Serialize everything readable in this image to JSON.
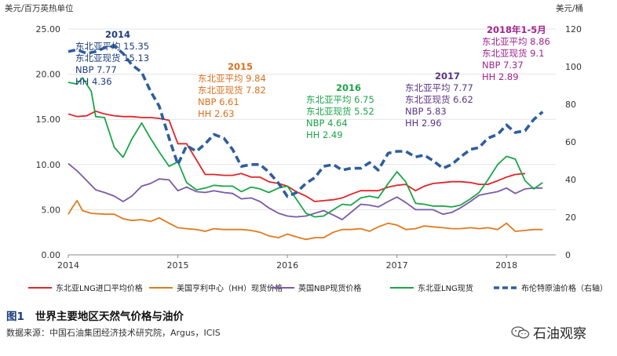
{
  "chart_data": {
    "type": "line",
    "y_left_label": "美元/百万英热单位",
    "y_right_label": "美元/桶",
    "y_left_ticks": [
      "0.00",
      "5.00",
      "10.00",
      "15.00",
      "20.00",
      "25.00"
    ],
    "y_right_ticks": [
      "0",
      "20",
      "40",
      "60",
      "80",
      "100",
      "120"
    ],
    "ylim_left": [
      0,
      25
    ],
    "ylim_right": [
      0,
      120
    ],
    "x_ticks": [
      "2014",
      "2015",
      "2016",
      "2017",
      "2018"
    ],
    "xlim": [
      2014.0,
      2018.45
    ],
    "legend_position": "bottom",
    "series": [
      {
        "name": "东北亚LNG进口平均价格",
        "color": "#e1242a",
        "axis": "left",
        "dash": false,
        "points": [
          [
            2014.0,
            15.6
          ],
          [
            2014.08,
            15.3
          ],
          [
            2014.17,
            15.4
          ],
          [
            2014.25,
            15.9
          ],
          [
            2014.33,
            15.6
          ],
          [
            2014.42,
            15.4
          ],
          [
            2014.5,
            15.3
          ],
          [
            2014.58,
            15.3
          ],
          [
            2014.67,
            15.2
          ],
          [
            2014.75,
            15.2
          ],
          [
            2014.83,
            15.1
          ],
          [
            2014.92,
            14.9
          ],
          [
            2015.0,
            12.3
          ],
          [
            2015.08,
            12.3
          ],
          [
            2015.17,
            10.5
          ],
          [
            2015.25,
            8.9
          ],
          [
            2015.33,
            8.9
          ],
          [
            2015.42,
            8.8
          ],
          [
            2015.5,
            8.8
          ],
          [
            2015.58,
            9.0
          ],
          [
            2015.67,
            8.6
          ],
          [
            2015.75,
            8.6
          ],
          [
            2015.83,
            8.1
          ],
          [
            2015.92,
            7.9
          ],
          [
            2016.0,
            7.6
          ],
          [
            2016.08,
            7.0
          ],
          [
            2016.17,
            6.5
          ],
          [
            2016.25,
            5.9
          ],
          [
            2016.33,
            6.0
          ],
          [
            2016.42,
            6.1
          ],
          [
            2016.5,
            6.3
          ],
          [
            2016.58,
            6.7
          ],
          [
            2016.67,
            7.1
          ],
          [
            2016.75,
            7.1
          ],
          [
            2016.83,
            7.1
          ],
          [
            2016.92,
            7.5
          ],
          [
            2017.0,
            7.7
          ],
          [
            2017.08,
            7.8
          ],
          [
            2017.17,
            7.1
          ],
          [
            2017.25,
            7.6
          ],
          [
            2017.33,
            7.9
          ],
          [
            2017.42,
            8.0
          ],
          [
            2017.5,
            8.1
          ],
          [
            2017.58,
            8.1
          ],
          [
            2017.67,
            8.0
          ],
          [
            2017.75,
            7.8
          ],
          [
            2017.83,
            7.8
          ],
          [
            2017.92,
            8.2
          ],
          [
            2018.0,
            8.6
          ],
          [
            2018.08,
            8.9
          ],
          [
            2018.17,
            9.0
          ]
        ]
      },
      {
        "name": "美国亨利中心（HH）现货价格",
        "color": "#e07a1f",
        "axis": "left",
        "dash": false,
        "points": [
          [
            2014.0,
            4.5
          ],
          [
            2014.04,
            5.3
          ],
          [
            2014.08,
            6.0
          ],
          [
            2014.13,
            4.9
          ],
          [
            2014.21,
            4.6
          ],
          [
            2014.33,
            4.5
          ],
          [
            2014.42,
            4.5
          ],
          [
            2014.5,
            4.0
          ],
          [
            2014.58,
            3.8
          ],
          [
            2014.67,
            3.9
          ],
          [
            2014.75,
            3.7
          ],
          [
            2014.83,
            4.1
          ],
          [
            2014.92,
            3.5
          ],
          [
            2015.0,
            3.0
          ],
          [
            2015.08,
            2.9
          ],
          [
            2015.17,
            2.8
          ],
          [
            2015.25,
            2.6
          ],
          [
            2015.33,
            2.9
          ],
          [
            2015.42,
            2.8
          ],
          [
            2015.5,
            2.8
          ],
          [
            2015.58,
            2.8
          ],
          [
            2015.67,
            2.7
          ],
          [
            2015.75,
            2.5
          ],
          [
            2015.83,
            2.1
          ],
          [
            2015.92,
            1.9
          ],
          [
            2016.0,
            2.3
          ],
          [
            2016.08,
            2.0
          ],
          [
            2016.17,
            1.7
          ],
          [
            2016.25,
            1.9
          ],
          [
            2016.33,
            1.9
          ],
          [
            2016.42,
            2.5
          ],
          [
            2016.5,
            2.8
          ],
          [
            2016.58,
            2.8
          ],
          [
            2016.67,
            2.9
          ],
          [
            2016.75,
            2.6
          ],
          [
            2016.83,
            3.1
          ],
          [
            2016.92,
            3.5
          ],
          [
            2017.0,
            3.3
          ],
          [
            2017.08,
            2.8
          ],
          [
            2017.17,
            2.9
          ],
          [
            2017.25,
            3.2
          ],
          [
            2017.33,
            3.1
          ],
          [
            2017.42,
            3.0
          ],
          [
            2017.5,
            2.9
          ],
          [
            2017.58,
            2.9
          ],
          [
            2017.67,
            3.0
          ],
          [
            2017.75,
            2.9
          ],
          [
            2017.83,
            3.0
          ],
          [
            2017.92,
            2.8
          ],
          [
            2018.0,
            3.5
          ],
          [
            2018.08,
            2.6
          ],
          [
            2018.17,
            2.7
          ],
          [
            2018.25,
            2.8
          ],
          [
            2018.33,
            2.8
          ]
        ]
      },
      {
        "name": "英国NBP现货价格",
        "color": "#7b5aa6",
        "axis": "left",
        "dash": false,
        "points": [
          [
            2014.0,
            10.1
          ],
          [
            2014.08,
            9.3
          ],
          [
            2014.17,
            8.2
          ],
          [
            2014.25,
            7.2
          ],
          [
            2014.33,
            6.9
          ],
          [
            2014.42,
            6.5
          ],
          [
            2014.5,
            5.9
          ],
          [
            2014.58,
            6.5
          ],
          [
            2014.67,
            7.6
          ],
          [
            2014.75,
            7.9
          ],
          [
            2014.83,
            8.4
          ],
          [
            2014.92,
            8.3
          ],
          [
            2015.0,
            7.1
          ],
          [
            2015.08,
            7.5
          ],
          [
            2015.17,
            7.0
          ],
          [
            2015.25,
            6.9
          ],
          [
            2015.33,
            7.1
          ],
          [
            2015.42,
            6.9
          ],
          [
            2015.5,
            6.8
          ],
          [
            2015.58,
            6.2
          ],
          [
            2015.67,
            6.3
          ],
          [
            2015.75,
            5.9
          ],
          [
            2015.83,
            5.2
          ],
          [
            2015.92,
            4.6
          ],
          [
            2016.0,
            4.3
          ],
          [
            2016.08,
            4.2
          ],
          [
            2016.17,
            4.3
          ],
          [
            2016.25,
            4.6
          ],
          [
            2016.33,
            4.9
          ],
          [
            2016.42,
            4.4
          ],
          [
            2016.5,
            3.9
          ],
          [
            2016.58,
            4.7
          ],
          [
            2016.67,
            5.6
          ],
          [
            2016.75,
            5.5
          ],
          [
            2016.83,
            5.3
          ],
          [
            2016.92,
            5.9
          ],
          [
            2017.0,
            6.4
          ],
          [
            2017.08,
            5.8
          ],
          [
            2017.17,
            5.0
          ],
          [
            2017.25,
            5.0
          ],
          [
            2017.33,
            5.0
          ],
          [
            2017.42,
            4.5
          ],
          [
            2017.5,
            4.7
          ],
          [
            2017.58,
            5.2
          ],
          [
            2017.67,
            5.9
          ],
          [
            2017.75,
            6.6
          ],
          [
            2017.83,
            6.8
          ],
          [
            2017.92,
            7.0
          ],
          [
            2018.0,
            7.4
          ],
          [
            2018.08,
            6.8
          ],
          [
            2018.17,
            7.3
          ],
          [
            2018.25,
            7.4
          ],
          [
            2018.33,
            7.4
          ]
        ]
      },
      {
        "name": "东北亚LNG现货",
        "color": "#1aa547",
        "axis": "left",
        "dash": false,
        "points": [
          [
            2014.0,
            19.1
          ],
          [
            2014.08,
            18.9
          ],
          [
            2014.13,
            19.6
          ],
          [
            2014.21,
            18.1
          ],
          [
            2014.25,
            15.3
          ],
          [
            2014.33,
            15.2
          ],
          [
            2014.42,
            11.9
          ],
          [
            2014.5,
            10.8
          ],
          [
            2014.58,
            12.8
          ],
          [
            2014.67,
            14.6
          ],
          [
            2014.75,
            12.9
          ],
          [
            2014.83,
            11.4
          ],
          [
            2014.92,
            9.8
          ],
          [
            2015.0,
            10.3
          ],
          [
            2015.08,
            8.0
          ],
          [
            2015.17,
            7.2
          ],
          [
            2015.25,
            7.4
          ],
          [
            2015.33,
            7.7
          ],
          [
            2015.42,
            7.6
          ],
          [
            2015.5,
            7.6
          ],
          [
            2015.58,
            7.0
          ],
          [
            2015.67,
            7.5
          ],
          [
            2015.75,
            7.3
          ],
          [
            2015.83,
            6.9
          ],
          [
            2015.92,
            7.4
          ],
          [
            2016.0,
            7.6
          ],
          [
            2016.08,
            6.2
          ],
          [
            2016.17,
            4.6
          ],
          [
            2016.25,
            4.2
          ],
          [
            2016.33,
            4.3
          ],
          [
            2016.42,
            5.0
          ],
          [
            2016.5,
            5.6
          ],
          [
            2016.58,
            5.5
          ],
          [
            2016.67,
            6.3
          ],
          [
            2016.75,
            6.5
          ],
          [
            2016.83,
            6.3
          ],
          [
            2016.92,
            7.9
          ],
          [
            2017.0,
            9.2
          ],
          [
            2017.08,
            8.1
          ],
          [
            2017.17,
            5.7
          ],
          [
            2017.25,
            5.6
          ],
          [
            2017.33,
            5.4
          ],
          [
            2017.42,
            5.4
          ],
          [
            2017.5,
            5.3
          ],
          [
            2017.58,
            5.5
          ],
          [
            2017.67,
            6.2
          ],
          [
            2017.75,
            6.9
          ],
          [
            2017.83,
            8.3
          ],
          [
            2017.92,
            10.0
          ],
          [
            2018.0,
            10.9
          ],
          [
            2018.08,
            10.6
          ],
          [
            2018.17,
            8.2
          ],
          [
            2018.25,
            7.3
          ],
          [
            2018.33,
            8.0
          ]
        ]
      },
      {
        "name": "布伦特原油价格（右轴）",
        "color": "#2e5e9e",
        "axis": "right",
        "dash": true,
        "points": [
          [
            2014.0,
            108
          ],
          [
            2014.08,
            109
          ],
          [
            2014.17,
            107
          ],
          [
            2014.25,
            108
          ],
          [
            2014.33,
            110
          ],
          [
            2014.42,
            111
          ],
          [
            2014.5,
            107
          ],
          [
            2014.58,
            101
          ],
          [
            2014.67,
            97
          ],
          [
            2014.75,
            87
          ],
          [
            2014.83,
            79
          ],
          [
            2014.92,
            62
          ],
          [
            2015.0,
            48
          ],
          [
            2015.08,
            58
          ],
          [
            2015.17,
            55
          ],
          [
            2015.25,
            59
          ],
          [
            2015.33,
            64
          ],
          [
            2015.42,
            62
          ],
          [
            2015.5,
            56
          ],
          [
            2015.58,
            47
          ],
          [
            2015.67,
            48
          ],
          [
            2015.75,
            48
          ],
          [
            2015.83,
            44
          ],
          [
            2015.92,
            38
          ],
          [
            2016.0,
            31
          ],
          [
            2016.08,
            33
          ],
          [
            2016.17,
            38
          ],
          [
            2016.25,
            41
          ],
          [
            2016.33,
            47
          ],
          [
            2016.42,
            48
          ],
          [
            2016.5,
            45
          ],
          [
            2016.58,
            46
          ],
          [
            2016.67,
            46
          ],
          [
            2016.75,
            49
          ],
          [
            2016.83,
            45
          ],
          [
            2016.92,
            54
          ],
          [
            2017.0,
            55
          ],
          [
            2017.08,
            55
          ],
          [
            2017.17,
            52
          ],
          [
            2017.25,
            53
          ],
          [
            2017.33,
            50
          ],
          [
            2017.42,
            46
          ],
          [
            2017.5,
            48
          ],
          [
            2017.58,
            52
          ],
          [
            2017.67,
            56
          ],
          [
            2017.75,
            57
          ],
          [
            2017.83,
            62
          ],
          [
            2017.92,
            64
          ],
          [
            2018.0,
            69
          ],
          [
            2018.08,
            65
          ],
          [
            2018.17,
            66
          ],
          [
            2018.25,
            72
          ],
          [
            2018.33,
            76
          ]
        ]
      }
    ],
    "annotations": [
      {
        "lines": [
          "2014",
          "东北亚平均 15.35",
          "东北亚现货 15.13",
          "NBP 7.77",
          "HH   4.36"
        ],
        "color": "#1f3d7a"
      },
      {
        "lines": [
          "2015",
          "东北亚平均 9.84",
          "东北亚现货 7.82",
          "NBP 6.61",
          "HH   2.63"
        ],
        "color": "#d9701c"
      },
      {
        "lines": [
          "2016",
          "东北亚平均 6.75",
          "东北亚现货 5.52",
          "NBP 4.64",
          "HH   2.49"
        ],
        "color": "#1aa547"
      },
      {
        "lines": [
          "2017",
          "东北亚平均 7.77",
          "东北亚现货 6.62",
          "NBP 5.83",
          "HH   2.96"
        ],
        "color": "#5a3585"
      },
      {
        "lines": [
          "2018年1-5月",
          "东北亚平均 8.86",
          "东北亚现货 9.1",
          "NBP 7.37",
          "HH   2.89"
        ],
        "color": "#a0238f"
      }
    ]
  },
  "caption": {
    "number": "图1",
    "title": "世界主要地区天然气价格与油价"
  },
  "source_text": "数据来源：中国石油集团经济技术研究院，Argus，ICIS",
  "brand": {
    "name": "石油观察",
    "icon": "wechat-icon"
  }
}
